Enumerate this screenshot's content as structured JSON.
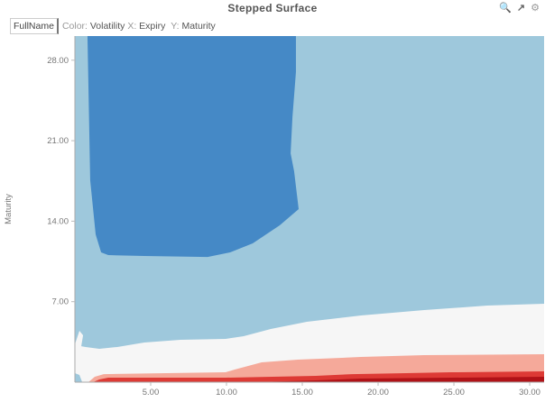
{
  "header": {
    "title": "Stepped Surface",
    "legend_button": "FullName",
    "color_key": "Color:",
    "color_val": "Volatility",
    "x_key": "X:",
    "x_val": "Expiry",
    "y_key": "Y:",
    "y_val": "Maturity"
  },
  "toolbar": {
    "icons": [
      "zoom-out-icon",
      "popout-icon",
      "gear-icon"
    ]
  },
  "chart_data": {
    "type": "heatmap",
    "subtype": "stepped contour surface",
    "title": "Stepped Surface",
    "xlabel": "Expiry",
    "ylabel": "Maturity",
    "xlim": [
      0,
      30.95
    ],
    "ylim": [
      0,
      30.1
    ],
    "x_ticks": [
      "5.00",
      "10.00",
      "15.00",
      "20.00",
      "25.00",
      "30.00"
    ],
    "x_tick_values": [
      5,
      10,
      15,
      20,
      25,
      30
    ],
    "y_ticks": [
      "7.00",
      "14.00",
      "21.00",
      "28.00"
    ],
    "y_tick_values": [
      7,
      14,
      21,
      28
    ],
    "background_color": "#9ec8dc",
    "regions": [
      {
        "name": "dark-blue",
        "color": "#4589c6",
        "points": [
          [
            0.83,
            30.1
          ],
          [
            1.01,
            17.55
          ],
          [
            1.37,
            12.85
          ],
          [
            1.73,
            11.29
          ],
          [
            2.2,
            11.05
          ],
          [
            4.58,
            10.97
          ],
          [
            8.75,
            10.89
          ],
          [
            10.24,
            11.29
          ],
          [
            11.73,
            12.07
          ],
          [
            13.51,
            13.64
          ],
          [
            14.76,
            15.05
          ],
          [
            14.46,
            18.34
          ],
          [
            14.23,
            19.9
          ],
          [
            14.35,
            23.04
          ],
          [
            14.58,
            26.96
          ],
          [
            14.58,
            30.1
          ]
        ]
      },
      {
        "name": "white",
        "color": "#f6f6f6",
        "points": [
          [
            0,
            0
          ],
          [
            0,
            3.29
          ],
          [
            0.3,
            4.47
          ],
          [
            0.54,
            4.08
          ],
          [
            0.42,
            3.13
          ],
          [
            0.71,
            3.06
          ],
          [
            1.61,
            2.9
          ],
          [
            2.8,
            3.06
          ],
          [
            4.58,
            3.45
          ],
          [
            6.96,
            3.68
          ],
          [
            9.94,
            3.76
          ],
          [
            11.13,
            4.0
          ],
          [
            12.92,
            4.62
          ],
          [
            15.3,
            5.25
          ],
          [
            18.87,
            5.8
          ],
          [
            23.04,
            6.27
          ],
          [
            27.2,
            6.66
          ],
          [
            30.95,
            6.82
          ],
          [
            30.95,
            0
          ]
        ]
      },
      {
        "name": "salmon",
        "color": "#f5a99a",
        "points": [
          [
            0.89,
            0
          ],
          [
            1.31,
            0.47
          ],
          [
            1.9,
            0.7
          ],
          [
            9.94,
            0.86
          ],
          [
            10.54,
            1.1
          ],
          [
            12.32,
            1.72
          ],
          [
            14.7,
            1.96
          ],
          [
            18.87,
            2.19
          ],
          [
            23.04,
            2.35
          ],
          [
            30.95,
            2.43
          ],
          [
            30.95,
            0
          ]
        ]
      },
      {
        "name": "red",
        "color": "#dd3a35",
        "points": [
          [
            1.2,
            0
          ],
          [
            1.61,
            0.24
          ],
          [
            2.2,
            0.39
          ],
          [
            9.94,
            0.39
          ],
          [
            15.89,
            0.55
          ],
          [
            18.27,
            0.7
          ],
          [
            21.85,
            0.78
          ],
          [
            24.82,
            0.86
          ],
          [
            30.95,
            0.94
          ],
          [
            30.95,
            0
          ]
        ]
      },
      {
        "name": "dark-red",
        "color": "#b01217",
        "points": [
          [
            12,
            0
          ],
          [
            15.89,
            0.16
          ],
          [
            18.87,
            0.31
          ],
          [
            24.82,
            0.39
          ],
          [
            30.95,
            0.47
          ],
          [
            30.95,
            0
          ]
        ]
      },
      {
        "name": "light-blue-patch",
        "color": "#9ec8dc",
        "points": [
          [
            0,
            0
          ],
          [
            0,
            0.78
          ],
          [
            0.3,
            0.63
          ],
          [
            0.48,
            0
          ]
        ]
      }
    ]
  }
}
